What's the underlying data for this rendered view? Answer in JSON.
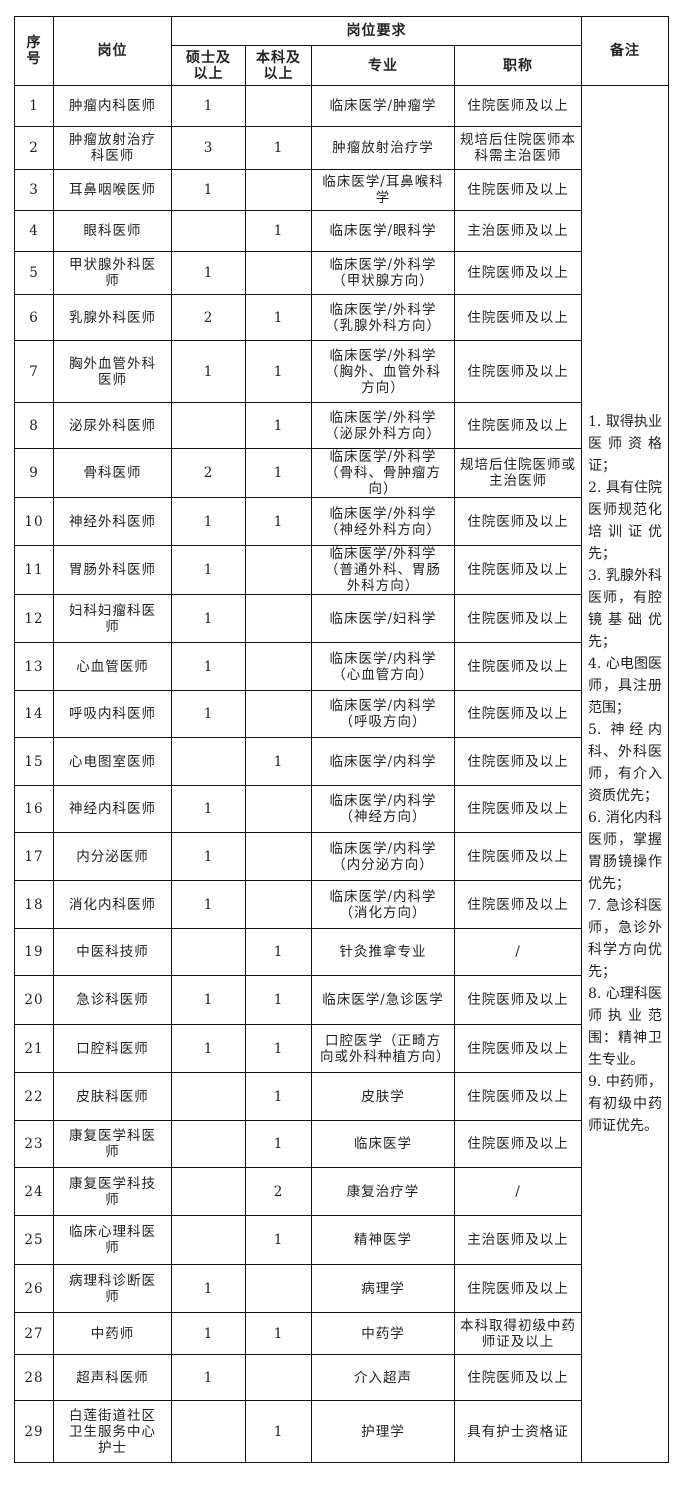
{
  "header": {
    "seq": "序号",
    "post": "岗位",
    "requirements": "岗位要求",
    "master": "硕士及以上",
    "bachelor": "本科及以上",
    "major": "专业",
    "title": "职称",
    "remarks": "备注"
  },
  "rows": [
    [
      "1",
      "肿瘤内科医师",
      "1",
      "",
      "临床医学/肿瘤学",
      "住院医师及以上"
    ],
    [
      "2",
      "肿瘤放射治疗科医师",
      "3",
      "1",
      "肿瘤放射治疗学",
      "规培后住院医师本科需主治医师"
    ],
    [
      "3",
      "耳鼻咽喉医师",
      "1",
      "",
      "临床医学/耳鼻喉科学",
      "住院医师及以上"
    ],
    [
      "4",
      "眼科医师",
      "",
      "1",
      "临床医学/眼科学",
      "主治医师及以上"
    ],
    [
      "5",
      "甲状腺外科医师",
      "1",
      "",
      "临床医学/外科学（甲状腺方向）",
      "住院医师及以上"
    ],
    [
      "6",
      "乳腺外科医师",
      "2",
      "1",
      "临床医学/外科学（乳腺外科方向）",
      "住院医师及以上"
    ],
    [
      "7",
      "胸外血管外科医师",
      "1",
      "1",
      "临床医学/外科学（胸外、血管外科方向）",
      "住院医师及以上"
    ],
    [
      "8",
      "泌尿外科医师",
      "",
      "1",
      "临床医学/外科学（泌尿外科方向）",
      "住院医师及以上"
    ],
    [
      "9",
      "骨科医师",
      "2",
      "1",
      "临床医学/外科学（骨科、骨肿瘤方向）",
      "规培后住院医师或主治医师"
    ],
    [
      "10",
      "神经外科医师",
      "1",
      "1",
      "临床医学/外科学（神经外科方向）",
      "住院医师及以上"
    ],
    [
      "11",
      "胃肠外科医师",
      "1",
      "",
      "临床医学/外科学（普通外科、胃肠外科方向）",
      "住院医师及以上"
    ],
    [
      "12",
      "妇科妇瘤科医师",
      "1",
      "",
      "临床医学/妇科学",
      "住院医师及以上"
    ],
    [
      "13",
      "心血管医师",
      "1",
      "",
      "临床医学/内科学（心血管方向）",
      "住院医师及以上"
    ],
    [
      "14",
      "呼吸内科医师",
      "1",
      "",
      "临床医学/内科学（呼吸方向）",
      "住院医师及以上"
    ],
    [
      "15",
      "心电图室医师",
      "",
      "1",
      "临床医学/内科学",
      "住院医师及以上"
    ],
    [
      "16",
      "神经内科医师",
      "1",
      "",
      "临床医学/内科学（神经方向）",
      "住院医师及以上"
    ],
    [
      "17",
      "内分泌医师",
      "1",
      "",
      "临床医学/内科学（内分泌方向）",
      "住院医师及以上"
    ],
    [
      "18",
      "消化内科医师",
      "1",
      "",
      "临床医学/内科学（消化方向）",
      "住院医师及以上"
    ],
    [
      "19",
      "中医科技师",
      "",
      "1",
      "针灸推拿专业",
      "/"
    ],
    [
      "20",
      "急诊科医师",
      "1",
      "1",
      "临床医学/急诊医学",
      "住院医师及以上"
    ],
    [
      "21",
      "口腔科医师",
      "1",
      "1",
      "口腔医学（正畸方向或外科种植方向）",
      "住院医师及以上"
    ],
    [
      "22",
      "皮肤科医师",
      "",
      "1",
      "皮肤学",
      "住院医师及以上"
    ],
    [
      "23",
      "康复医学科医师",
      "",
      "1",
      "临床医学",
      "住院医师及以上"
    ],
    [
      "24",
      "康复医学科技师",
      "",
      "2",
      "康复治疗学",
      "/"
    ],
    [
      "25",
      "临床心理科医师",
      "",
      "1",
      "精神医学",
      "主治医师及以上"
    ],
    [
      "26",
      "病理科诊断医师",
      "1",
      "",
      "病理学",
      "住院医师及以上"
    ],
    [
      "27",
      "中药师",
      "1",
      "1",
      "中药学",
      "本科取得初级中药师证及以上"
    ],
    [
      "28",
      "超声科医师",
      "1",
      "",
      "介入超声",
      "住院医师及以上"
    ],
    [
      "29",
      "白莲街道社区卫生服务中心护士",
      "",
      "1",
      "护理学",
      "具有护士资格证"
    ]
  ],
  "remarks": [
    "1. 取得执业医师资格证；",
    "2. 具有住院医师规范化培训证优先；",
    "3. 乳腺外科医师，有腔镜基础优先；",
    "4. 心电图医师，具注册范围；",
    "5. 神经内科、外科医师，有介入资质优先；",
    "6. 消化内科医师，掌握胃肠镜操作优先；",
    "7. 急诊科医师，急诊外科学方向优先；",
    "8. 心理科医师执业范围：精神卫生专业。",
    "9. 中药师，有初级中药师证优先。"
  ]
}
